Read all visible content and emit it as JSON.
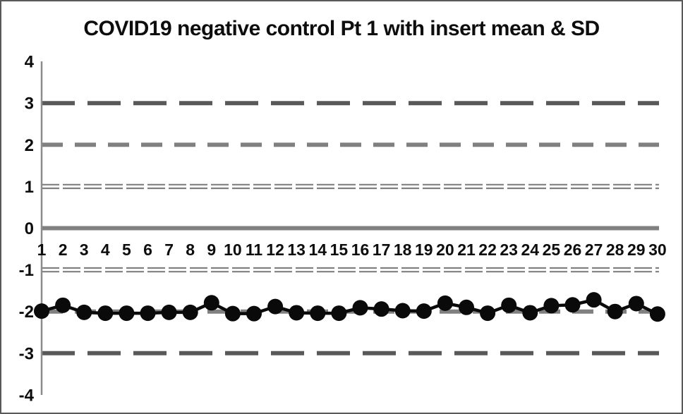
{
  "chart_data": {
    "type": "line",
    "title": "COVID19 negative control Pt 1 with insert mean & SD",
    "xlabel": "",
    "ylabel": "",
    "ylim": [
      -4,
      4
    ],
    "grid": false,
    "legend": "none",
    "x": [
      1,
      2,
      3,
      4,
      5,
      6,
      7,
      8,
      9,
      10,
      11,
      12,
      13,
      14,
      15,
      16,
      17,
      18,
      19,
      20,
      21,
      22,
      23,
      24,
      25,
      26,
      27,
      28,
      29,
      30
    ],
    "values": [
      -1.99,
      -1.85,
      -2.02,
      -2.04,
      -2.04,
      -2.04,
      -2.02,
      -2.02,
      -1.79,
      -2.05,
      -2.05,
      -1.88,
      -2.03,
      -2.04,
      -2.04,
      -1.91,
      -1.94,
      -1.98,
      -1.99,
      -1.8,
      -1.9,
      -2.04,
      -1.85,
      -2.03,
      -1.86,
      -1.84,
      -1.72,
      -2.0,
      -1.81,
      -2.06
    ],
    "y_ticks": [
      4,
      3,
      2,
      1,
      0,
      -1,
      -2,
      -3,
      -4
    ],
    "sd_lines": [
      {
        "level": 3,
        "style": "long-dash",
        "color": "#595959"
      },
      {
        "level": 2,
        "style": "dash",
        "color": "#808080"
      },
      {
        "level": 1,
        "style": "double-dash",
        "color": "#808080"
      },
      {
        "level": 0,
        "style": "solid",
        "color": "#808080"
      },
      {
        "level": -1,
        "style": "double-dash",
        "color": "#808080"
      },
      {
        "level": -2,
        "style": "dash",
        "color": "#808080"
      },
      {
        "level": -3,
        "style": "long-dash",
        "color": "#595959"
      }
    ]
  },
  "colors": {
    "series": "#0a0a0a",
    "axis": "#8c8c8c",
    "frame": "#595959",
    "background": "#ffffff"
  }
}
